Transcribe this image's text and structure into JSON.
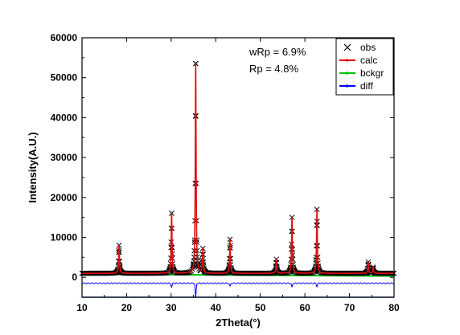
{
  "chart_data": {
    "type": "line",
    "title": "",
    "xlabel": "2Theta(°)",
    "ylabel": "Intensity(A.U.)",
    "xlim": [
      10,
      80
    ],
    "ylim": [
      -5000,
      60000
    ],
    "x_ticks": [
      10,
      20,
      30,
      40,
      50,
      60,
      70,
      80
    ],
    "y_ticks": [
      0,
      10000,
      20000,
      30000,
      40000,
      50000,
      60000
    ],
    "x_tick_labels": [
      "10",
      "20",
      "30",
      "40",
      "50",
      "60",
      "70",
      "80"
    ],
    "y_tick_labels": [
      "0",
      "10000",
      "20000",
      "30000",
      "40000",
      "50000",
      "60000"
    ],
    "grid": false,
    "legend_position": "top-right",
    "annotations": [
      "wRp = 6.9%",
      "Rp = 4.8%"
    ],
    "peaks": [
      {
        "x": 18.3,
        "y": 8000
      },
      {
        "x": 30.1,
        "y": 16000
      },
      {
        "x": 35.5,
        "y": 53500
      },
      {
        "x": 37.1,
        "y": 7000
      },
      {
        "x": 43.2,
        "y": 9500
      },
      {
        "x": 53.6,
        "y": 4500
      },
      {
        "x": 57.1,
        "y": 15000
      },
      {
        "x": 62.7,
        "y": 17000
      },
      {
        "x": 74.2,
        "y": 3800
      },
      {
        "x": 75.3,
        "y": 2500
      }
    ],
    "series": [
      {
        "name": "obs",
        "style": "x-markers",
        "color": "#000000",
        "background": 1000
      },
      {
        "name": "calc",
        "style": "line",
        "color": "#e01010",
        "background": 1000
      },
      {
        "name": "bckgr",
        "style": "line",
        "color": "#00c000",
        "background_start": 800,
        "background_end": 300
      },
      {
        "name": "diff",
        "style": "line",
        "color": "#0000ff",
        "offset": -1500,
        "diff_peaks": [
          {
            "x": 30.1,
            "y": -1000
          },
          {
            "x": 35.5,
            "y": -3500
          },
          {
            "x": 43.2,
            "y": -800
          },
          {
            "x": 57.1,
            "y": -1000
          },
          {
            "x": 62.7,
            "y": -800
          }
        ]
      }
    ],
    "reference_line": {
      "y": -5000,
      "color": "#3060c0"
    }
  }
}
